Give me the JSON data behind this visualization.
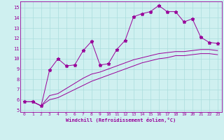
{
  "xlabel": "Windchill (Refroidissement éolien,°C)",
  "bg_color": "#cff0f0",
  "grid_color": "#aadddd",
  "line_color": "#990099",
  "x_ticks": [
    0,
    1,
    2,
    3,
    4,
    5,
    6,
    7,
    8,
    9,
    10,
    11,
    12,
    13,
    14,
    15,
    16,
    17,
    18,
    19,
    20,
    21,
    22,
    23
  ],
  "y_ticks": [
    5,
    6,
    7,
    8,
    9,
    10,
    11,
    12,
    13,
    14,
    15
  ],
  "ylim": [
    4.8,
    15.6
  ],
  "xlim": [
    -0.5,
    23.5
  ],
  "series1_x": [
    0,
    1,
    2,
    3,
    4,
    5,
    6,
    7,
    8,
    9,
    10,
    11,
    12,
    13,
    14,
    15,
    16,
    17,
    18,
    19,
    20,
    21,
    22,
    23
  ],
  "series1_y": [
    5.8,
    5.8,
    5.4,
    8.9,
    10.0,
    9.3,
    9.4,
    10.8,
    11.7,
    9.4,
    9.5,
    10.9,
    11.8,
    14.1,
    14.4,
    14.6,
    15.2,
    14.6,
    14.6,
    13.6,
    13.9,
    12.1,
    11.6,
    11.5
  ],
  "series2_x": [
    0,
    1,
    2,
    3,
    4,
    5,
    6,
    7,
    8,
    9,
    10,
    11,
    12,
    13,
    14,
    15,
    16,
    17,
    18,
    19,
    20,
    21,
    22,
    23
  ],
  "series2_y": [
    5.8,
    5.8,
    5.4,
    6.4,
    6.6,
    7.1,
    7.6,
    8.1,
    8.5,
    8.7,
    9.0,
    9.3,
    9.6,
    9.9,
    10.1,
    10.3,
    10.5,
    10.6,
    10.7,
    10.7,
    10.8,
    10.9,
    10.9,
    10.8
  ],
  "series3_x": [
    0,
    1,
    2,
    3,
    4,
    5,
    6,
    7,
    8,
    9,
    10,
    11,
    12,
    13,
    14,
    15,
    16,
    17,
    18,
    19,
    20,
    21,
    22,
    23
  ],
  "series3_y": [
    5.8,
    5.8,
    5.4,
    6.0,
    6.2,
    6.6,
    7.0,
    7.4,
    7.8,
    8.1,
    8.4,
    8.7,
    9.0,
    9.3,
    9.6,
    9.8,
    10.0,
    10.1,
    10.3,
    10.3,
    10.4,
    10.5,
    10.5,
    10.4
  ]
}
